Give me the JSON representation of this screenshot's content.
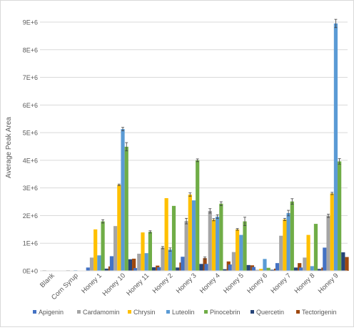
{
  "chart_data": {
    "type": "bar",
    "ylabel": "Average Peak Area",
    "ylim": [
      0,
      9000000
    ],
    "yticks": [
      {
        "value": 0,
        "label": "0E+0"
      },
      {
        "value": 1000000,
        "label": "1E+6"
      },
      {
        "value": 2000000,
        "label": "2E+6"
      },
      {
        "value": 3000000,
        "label": "3E+6"
      },
      {
        "value": 4000000,
        "label": "4E+6"
      },
      {
        "value": 5000000,
        "label": "5E+6"
      },
      {
        "value": 6000000,
        "label": "6E+6"
      },
      {
        "value": 7000000,
        "label": "7E+6"
      },
      {
        "value": 8000000,
        "label": "8E+6"
      },
      {
        "value": 9000000,
        "label": "9E+6"
      }
    ],
    "grid": true,
    "legend_position": "bottom",
    "categories": [
      "Blank",
      "Corn Syrup",
      "Honey 1",
      "Honey 10",
      "Honey 11",
      "Honey 2",
      "Honey 3",
      "Honey 4",
      "Honey 5",
      "Honey 6",
      "Honey 7",
      "Honey 8",
      "Honey 9"
    ],
    "series": [
      {
        "name": "Apigenin",
        "color": "#4472c4",
        "values": [
          0,
          0,
          120000,
          530000,
          100000,
          130000,
          510000,
          250000,
          230000,
          140000,
          280000,
          120000,
          840000
        ],
        "errors": [
          0,
          0,
          0,
          0,
          0,
          0,
          0,
          0,
          0,
          0,
          0,
          0,
          0
        ]
      },
      {
        "name": "Cardamomin",
        "color": "#a5a5a5",
        "values": [
          20000,
          10000,
          480000,
          1620000,
          620000,
          840000,
          1800000,
          2170000,
          680000,
          40000,
          1270000,
          480000,
          1990000
        ],
        "errors": [
          0,
          0,
          0,
          0,
          0,
          40000,
          100000,
          80000,
          0,
          0,
          0,
          0,
          60000
        ]
      },
      {
        "name": "Chrysin",
        "color": "#ffc000",
        "values": [
          0,
          0,
          1500000,
          3110000,
          1390000,
          2630000,
          2760000,
          1850000,
          1500000,
          70000,
          1860000,
          1300000,
          2800000
        ],
        "errors": [
          0,
          0,
          0,
          30000,
          0,
          0,
          60000,
          40000,
          30000,
          0,
          40000,
          0,
          40000
        ]
      },
      {
        "name": "Luteolin",
        "color": "#5b9bd5",
        "values": [
          0,
          10000,
          560000,
          5130000,
          640000,
          770000,
          2550000,
          1960000,
          1300000,
          430000,
          2090000,
          170000,
          8950000
        ],
        "errors": [
          0,
          0,
          0,
          60000,
          0,
          60000,
          0,
          70000,
          0,
          0,
          100000,
          0,
          150000
        ]
      },
      {
        "name": "Pinocebrin",
        "color": "#70ad47",
        "values": [
          0,
          0,
          1790000,
          4490000,
          1410000,
          2350000,
          4000000,
          2430000,
          1790000,
          110000,
          2510000,
          1700000,
          3960000
        ],
        "errors": [
          0,
          0,
          60000,
          150000,
          40000,
          0,
          50000,
          70000,
          150000,
          0,
          100000,
          0,
          100000
        ]
      },
      {
        "name": "Quercetin",
        "color": "#264478",
        "values": [
          0,
          0,
          80000,
          420000,
          130000,
          120000,
          250000,
          60000,
          210000,
          40000,
          120000,
          70000,
          670000
        ],
        "errors": [
          0,
          0,
          0,
          0,
          0,
          0,
          0,
          0,
          0,
          0,
          0,
          0,
          0
        ]
      },
      {
        "name": "Tectorigenin",
        "color": "#9e480e",
        "values": [
          0,
          0,
          160000,
          440000,
          190000,
          300000,
          460000,
          340000,
          200000,
          80000,
          280000,
          120000,
          500000
        ],
        "errors": [
          0,
          0,
          0,
          0,
          0,
          0,
          40000,
          0,
          0,
          0,
          0,
          0,
          0
        ]
      }
    ]
  }
}
